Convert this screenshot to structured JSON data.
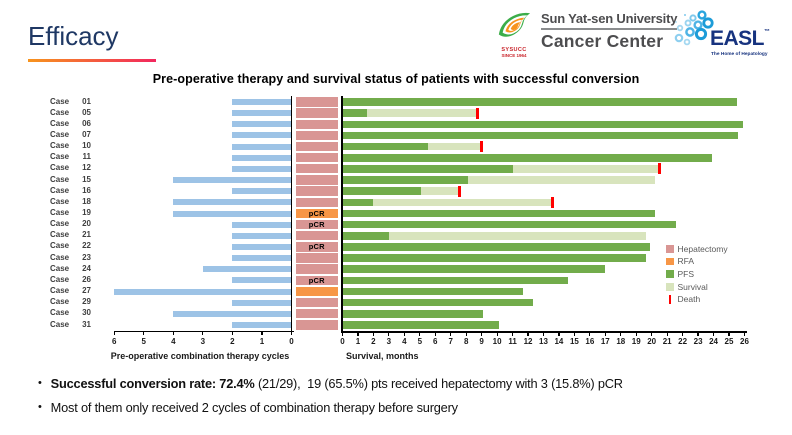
{
  "header": {
    "title": "Efficacy",
    "sysucc": {
      "abbr": "SYSUCC",
      "since": "SINCE 1964",
      "line1": "Sun Yat-sen University",
      "line2": "Cancer Center"
    },
    "easl": {
      "name": "EASL",
      "tm": "™",
      "tagline": "The Home of Hepatology"
    }
  },
  "chart_data": {
    "type": "bar",
    "title": "Pre-operative therapy and survival status of patients with successful conversion",
    "case_label_prefix": "Case",
    "pcr_label": "pCR",
    "left_axis": {
      "label": "Pre-operative combination therapy cycles",
      "max": 6,
      "ticks": [
        6,
        5,
        4,
        3,
        2,
        1,
        0
      ]
    },
    "right_axis": {
      "label": "Survival, months",
      "max": 26,
      "ticks": [
        0,
        1,
        2,
        3,
        4,
        5,
        6,
        7,
        8,
        9,
        10,
        11,
        12,
        13,
        14,
        15,
        16,
        17,
        18,
        19,
        20,
        21,
        22,
        23,
        24,
        25,
        26
      ]
    },
    "legend": [
      {
        "label": "Hepatectomy",
        "color": "#D99694",
        "shape": "square"
      },
      {
        "label": "RFA",
        "color": "#F79646",
        "shape": "square"
      },
      {
        "label": "PFS",
        "color": "#72AC4B",
        "shape": "square"
      },
      {
        "label": "Survival",
        "color": "#D8E4BD",
        "shape": "square"
      },
      {
        "label": "Death",
        "color": "#FF0000",
        "shape": "tick"
      }
    ],
    "colors": {
      "cycles": "#9DC3E6",
      "hepatectomy": "#D99694",
      "rfa": "#F79646",
      "pfs": "#72AC4B",
      "survival": "#D8E4BD",
      "death": "#FF0000"
    },
    "cases": [
      {
        "id": "01",
        "cycles": 2,
        "surgery": "Hepatectomy",
        "pcr": false,
        "pfs_months": 25.5,
        "os_months": 25.5,
        "death": false
      },
      {
        "id": "05",
        "cycles": 2,
        "surgery": "Hepatectomy",
        "pcr": false,
        "pfs_months": 1.6,
        "os_months": 8.7,
        "death": true
      },
      {
        "id": "06",
        "cycles": 2,
        "surgery": "Hepatectomy",
        "pcr": false,
        "pfs_months": 25.9,
        "os_months": 25.9,
        "death": false
      },
      {
        "id": "07",
        "cycles": 2,
        "surgery": "Hepatectomy",
        "pcr": false,
        "pfs_months": 25.6,
        "os_months": 25.6,
        "death": false
      },
      {
        "id": "10",
        "cycles": 2,
        "surgery": "Hepatectomy",
        "pcr": false,
        "pfs_months": 5.5,
        "os_months": 9.0,
        "death": true
      },
      {
        "id": "11",
        "cycles": 2,
        "surgery": "Hepatectomy",
        "pcr": false,
        "pfs_months": 23.9,
        "os_months": 23.9,
        "death": false
      },
      {
        "id": "12",
        "cycles": 2,
        "surgery": "Hepatectomy",
        "pcr": false,
        "pfs_months": 11.0,
        "os_months": 20.5,
        "death": true
      },
      {
        "id": "15",
        "cycles": 4,
        "surgery": "Hepatectomy",
        "pcr": false,
        "pfs_months": 8.1,
        "os_months": 20.2,
        "death": false
      },
      {
        "id": "16",
        "cycles": 2,
        "surgery": "Hepatectomy",
        "pcr": false,
        "pfs_months": 5.1,
        "os_months": 7.6,
        "death": true
      },
      {
        "id": "18",
        "cycles": 4,
        "surgery": "Hepatectomy",
        "pcr": false,
        "pfs_months": 2.0,
        "os_months": 13.6,
        "death": true
      },
      {
        "id": "19",
        "cycles": 4,
        "surgery": "RFA",
        "pcr": true,
        "pfs_months": 20.2,
        "os_months": 20.2,
        "death": false
      },
      {
        "id": "20",
        "cycles": 2,
        "surgery": "Hepatectomy",
        "pcr": true,
        "pfs_months": 21.6,
        "os_months": 21.6,
        "death": false
      },
      {
        "id": "21",
        "cycles": 2,
        "surgery": "Hepatectomy",
        "pcr": false,
        "pfs_months": 3.0,
        "os_months": 19.6,
        "death": false
      },
      {
        "id": "22",
        "cycles": 2,
        "surgery": "Hepatectomy",
        "pcr": true,
        "pfs_months": 19.9,
        "os_months": 19.9,
        "death": false
      },
      {
        "id": "23",
        "cycles": 2,
        "surgery": "Hepatectomy",
        "pcr": false,
        "pfs_months": 19.6,
        "os_months": 19.6,
        "death": false
      },
      {
        "id": "24",
        "cycles": 3,
        "surgery": "Hepatectomy",
        "pcr": false,
        "pfs_months": 17.0,
        "os_months": 17.0,
        "death": false
      },
      {
        "id": "26",
        "cycles": 2,
        "surgery": "Hepatectomy",
        "pcr": true,
        "pfs_months": 14.6,
        "os_months": 14.6,
        "death": false
      },
      {
        "id": "27",
        "cycles": 6,
        "surgery": "RFA",
        "pcr": false,
        "pfs_months": 11.7,
        "os_months": 11.7,
        "death": false
      },
      {
        "id": "29",
        "cycles": 2,
        "surgery": "Hepatectomy",
        "pcr": false,
        "pfs_months": 12.3,
        "os_months": 12.3,
        "death": false
      },
      {
        "id": "30",
        "cycles": 4,
        "surgery": "Hepatectomy",
        "pcr": false,
        "pfs_months": 9.1,
        "os_months": 9.1,
        "death": false
      },
      {
        "id": "31",
        "cycles": 2,
        "surgery": "Hepatectomy",
        "pcr": false,
        "pfs_months": 10.1,
        "os_months": 10.1,
        "death": false
      }
    ]
  },
  "bullets": {
    "glyph": "•",
    "items": [
      {
        "bold": "Successful conversion rate: 72.4%",
        "rest": " (21/29),  19 (65.5%) pts received hepatectomy with 3 (15.8%) pCR"
      },
      {
        "bold": "",
        "rest": "Most of them only received 2 cycles of combination therapy before surgery"
      }
    ]
  }
}
